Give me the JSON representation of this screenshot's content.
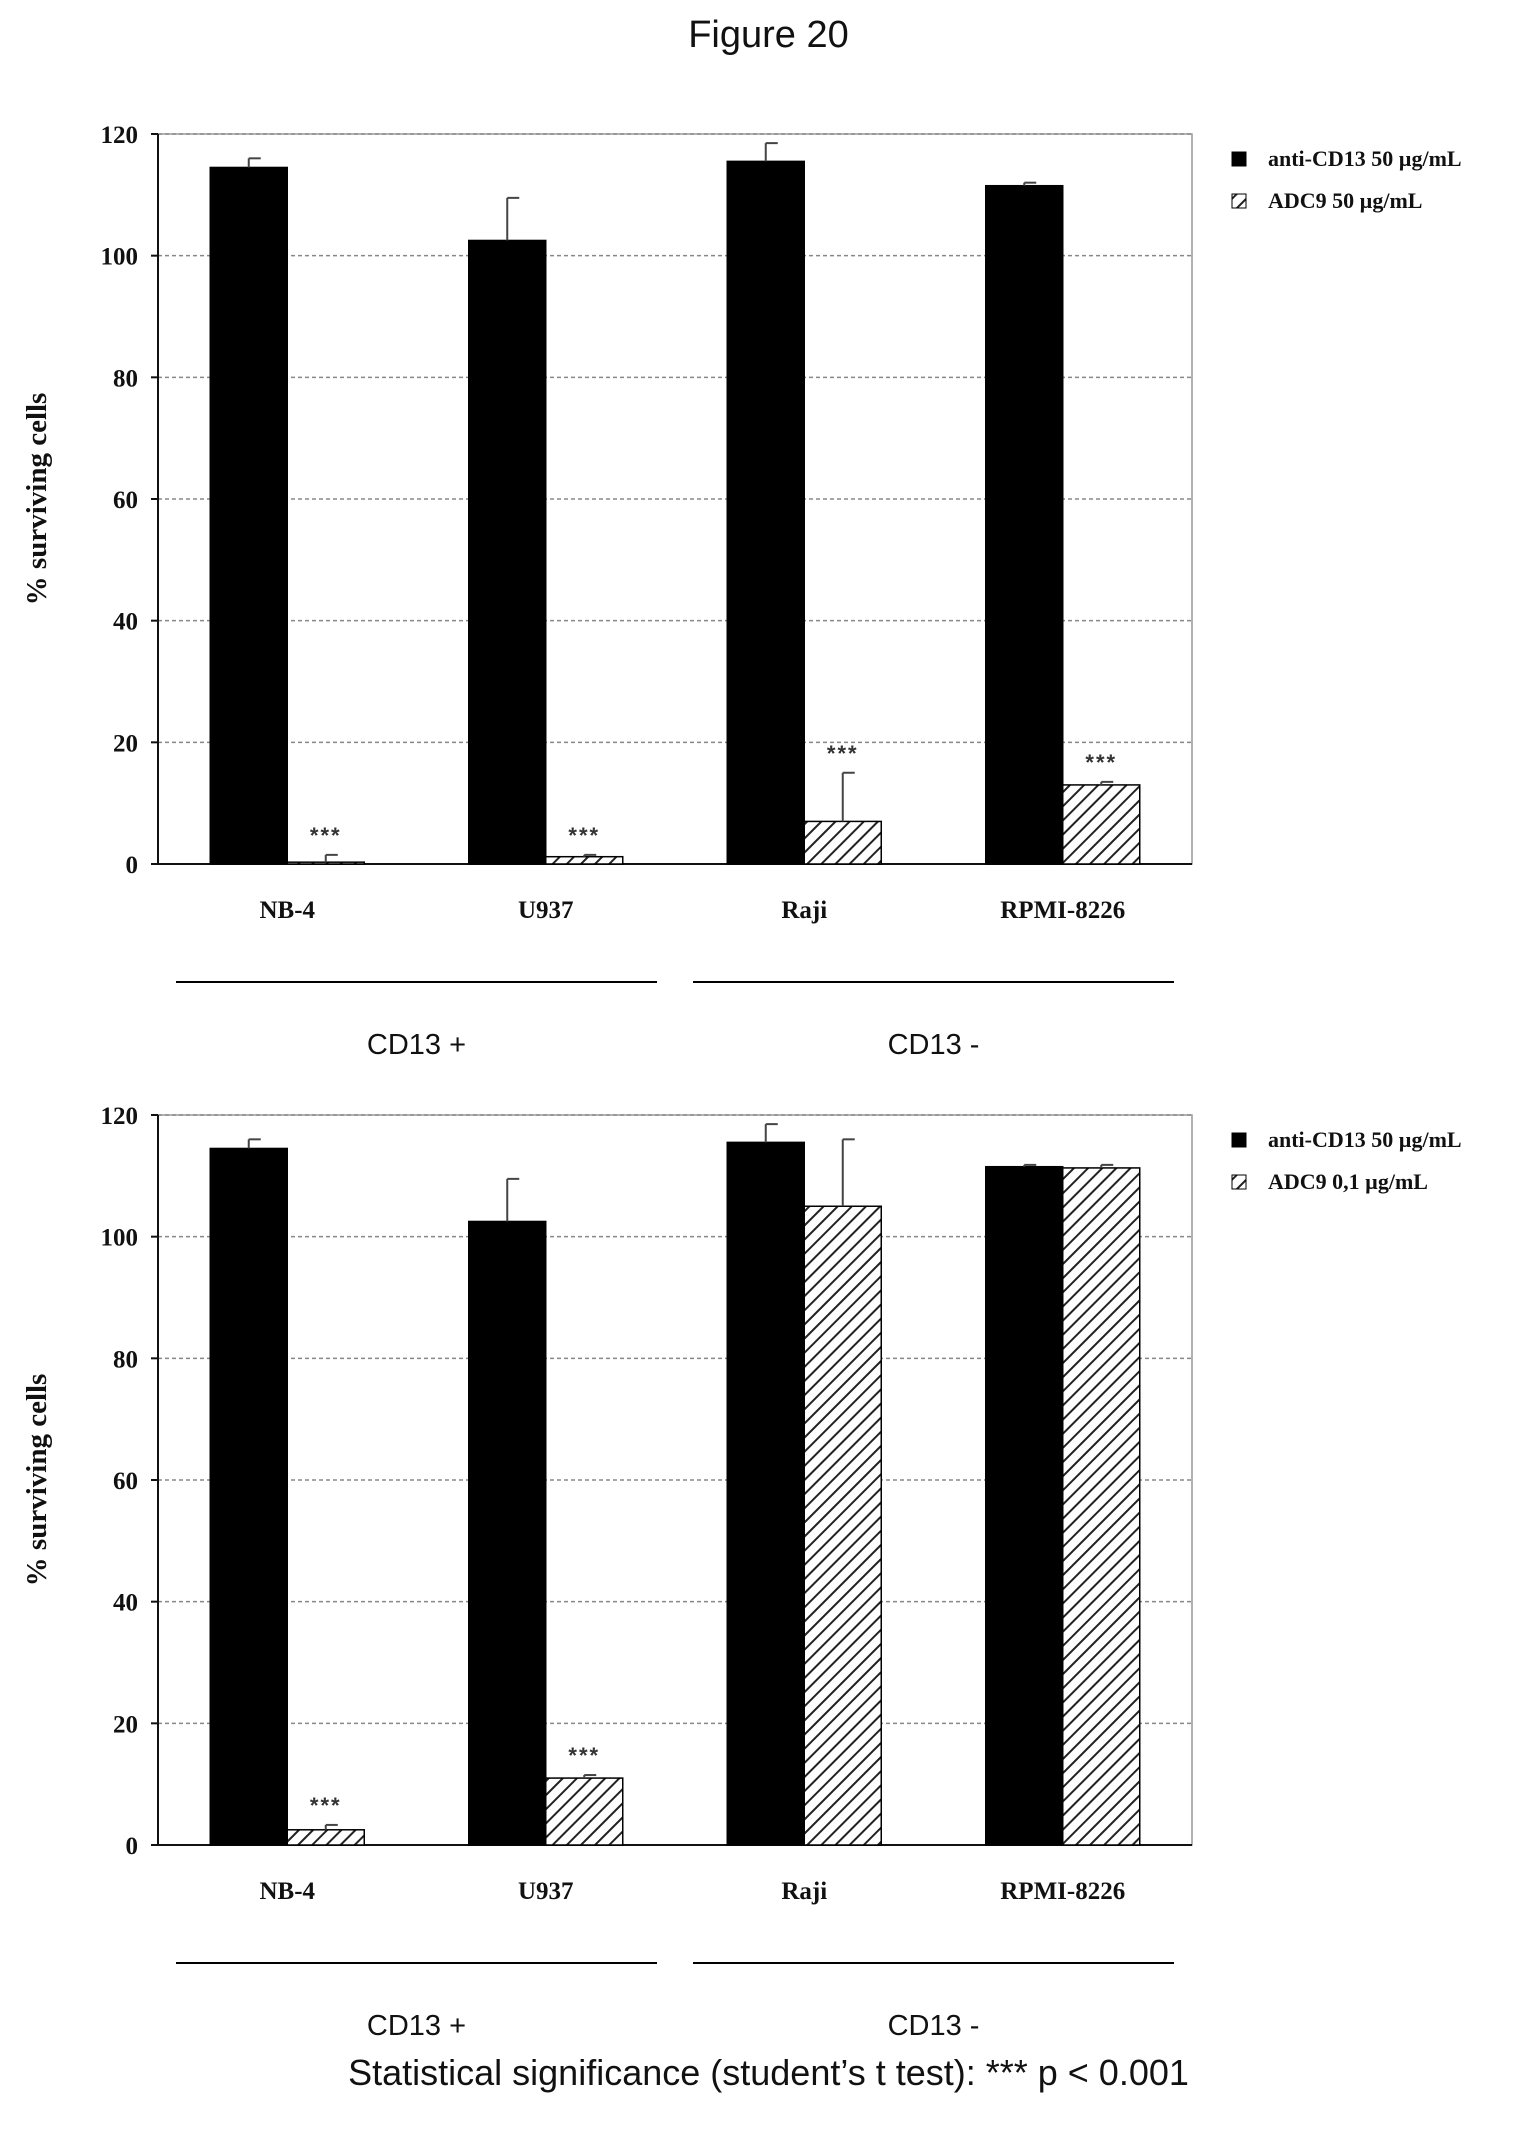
{
  "figure_title": "Figure 20",
  "footnote": "Statistical significance (student’s t test): *** p < 0.001",
  "colors": {
    "anti": "#000000",
    "adc_hatch": "#222222",
    "grid": "#888888",
    "axis": "#111111"
  },
  "chart_data": [
    {
      "type": "bar",
      "ylabel": "% surviving cells",
      "ylim": [
        0,
        120
      ],
      "yticks": [
        0,
        20,
        40,
        60,
        80,
        100,
        120
      ],
      "grid": true,
      "legend_position": "right",
      "categories": [
        "NB-4",
        "U937",
        "Raji",
        "RPMI-8226"
      ],
      "groups": [
        {
          "label": "CD13 +",
          "categories": [
            "NB-4",
            "U937"
          ]
        },
        {
          "label": "CD13 -",
          "categories": [
            "Raji",
            "RPMI-8226"
          ]
        }
      ],
      "series": [
        {
          "name": "anti-CD13 50 µg/mL",
          "pattern": "solid",
          "values": [
            114.5,
            102.5,
            115.5,
            111.5
          ],
          "errors": [
            1.5,
            7,
            3,
            0.5
          ]
        },
        {
          "name": "ADC9 50 µg/mL",
          "pattern": "hatch",
          "values": [
            0.3,
            1.2,
            7,
            13
          ],
          "errors": [
            1.2,
            0.3,
            8,
            0.5
          ]
        }
      ],
      "annotations": [
        {
          "category": "NB-4",
          "series": 1,
          "text": "***"
        },
        {
          "category": "U937",
          "series": 1,
          "text": "***"
        },
        {
          "category": "Raji",
          "series": 1,
          "text": "***"
        },
        {
          "category": "RPMI-8226",
          "series": 1,
          "text": "***"
        }
      ]
    },
    {
      "type": "bar",
      "ylabel": "% surviving cells",
      "ylim": [
        0,
        120
      ],
      "yticks": [
        0,
        20,
        40,
        60,
        80,
        100,
        120
      ],
      "grid": true,
      "legend_position": "right",
      "categories": [
        "NB-4",
        "U937",
        "Raji",
        "RPMI-8226"
      ],
      "groups": [
        {
          "label": "CD13 +",
          "categories": [
            "NB-4",
            "U937"
          ]
        },
        {
          "label": "CD13 -",
          "categories": [
            "Raji",
            "RPMI-8226"
          ]
        }
      ],
      "series": [
        {
          "name": "anti-CD13 50 µg/mL",
          "pattern": "solid",
          "values": [
            114.5,
            102.5,
            115.5,
            111.5
          ],
          "errors": [
            1.5,
            7,
            3,
            0.3
          ]
        },
        {
          "name": "ADC9 0,1 µg/mL",
          "pattern": "hatch",
          "values": [
            2.5,
            11,
            105,
            111.3
          ],
          "errors": [
            0.8,
            0.5,
            11,
            0.5
          ]
        }
      ],
      "annotations": [
        {
          "category": "NB-4",
          "series": 1,
          "text": "***"
        },
        {
          "category": "U937",
          "series": 1,
          "text": "***"
        }
      ]
    }
  ]
}
